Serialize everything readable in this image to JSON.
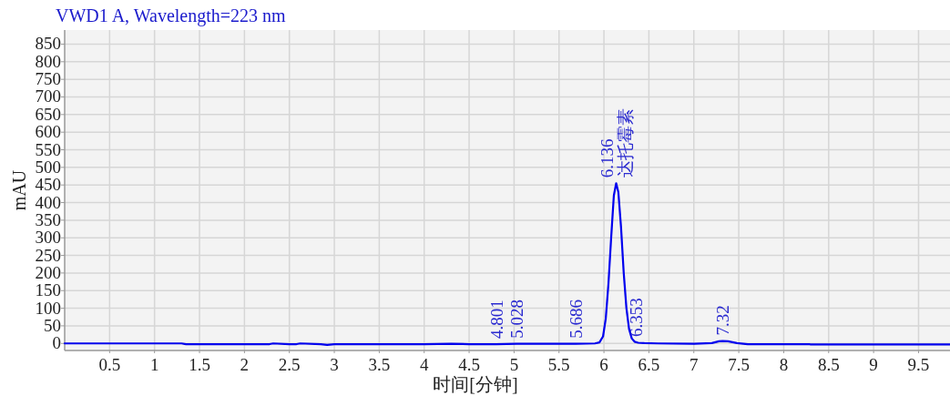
{
  "chart_data": {
    "type": "line",
    "title": "VWD1 A, Wavelength=223 nm",
    "xlabel": "时间[分钟]",
    "ylabel": "mAU",
    "xlim": [
      0,
      9.85
    ],
    "ylim": [
      -20,
      890
    ],
    "xticks": [
      0.5,
      1,
      1.5,
      2,
      2.5,
      3,
      3.5,
      4,
      4.5,
      5,
      5.5,
      6,
      6.5,
      7,
      7.5,
      8,
      8.5,
      9,
      9.5
    ],
    "yticks": [
      0,
      50,
      100,
      150,
      200,
      250,
      300,
      350,
      400,
      450,
      500,
      550,
      600,
      650,
      700,
      750,
      800,
      850
    ],
    "grid": true,
    "line_style": "solid",
    "series": [
      {
        "color": "#0000ee",
        "x": [
          0,
          0.5,
          1,
          1.3,
          1.35,
          2,
          2.28,
          2.32,
          2.5,
          2.58,
          2.62,
          2.85,
          2.92,
          3,
          3.5,
          4,
          4.3,
          4.5,
          4.801,
          5.028,
          5.5,
          5.686,
          5.9,
          5.95,
          5.99,
          6.02,
          6.05,
          6.08,
          6.11,
          6.136,
          6.16,
          6.19,
          6.22,
          6.25,
          6.28,
          6.31,
          6.34,
          6.38,
          6.45,
          6.6,
          7,
          7.2,
          7.28,
          7.32,
          7.38,
          7.48,
          7.6,
          8,
          8.28,
          8.3,
          9,
          9.85
        ],
        "values": [
          0,
          0,
          0,
          0,
          -2,
          -2,
          -2,
          0,
          -2,
          -2,
          0,
          -2,
          -4,
          -2,
          -2,
          -2,
          -1,
          -2,
          -2,
          -1,
          -1,
          -1,
          0,
          3,
          20,
          70,
          170,
          300,
          420,
          455,
          430,
          330,
          200,
          100,
          40,
          14,
          5,
          2,
          1,
          0,
          -1,
          1,
          6,
          7,
          6,
          1,
          -2,
          -2,
          -2,
          -3,
          -3,
          -3
        ]
      }
    ],
    "annotations": [
      {
        "text": "4.801",
        "x": 4.801,
        "y": -2
      },
      {
        "text": "5.028",
        "x": 5.028,
        "y": -1
      },
      {
        "text": "5.686",
        "x": 5.686,
        "y": -1
      },
      {
        "text": "6.136",
        "x": 6.136,
        "y": 455
      },
      {
        "text": "达托霉素",
        "x": 6.136,
        "y": 455
      },
      {
        "text": "6.353",
        "x": 6.353,
        "y": 3
      },
      {
        "text": "7.32",
        "x": 7.32,
        "y": 7
      }
    ]
  }
}
